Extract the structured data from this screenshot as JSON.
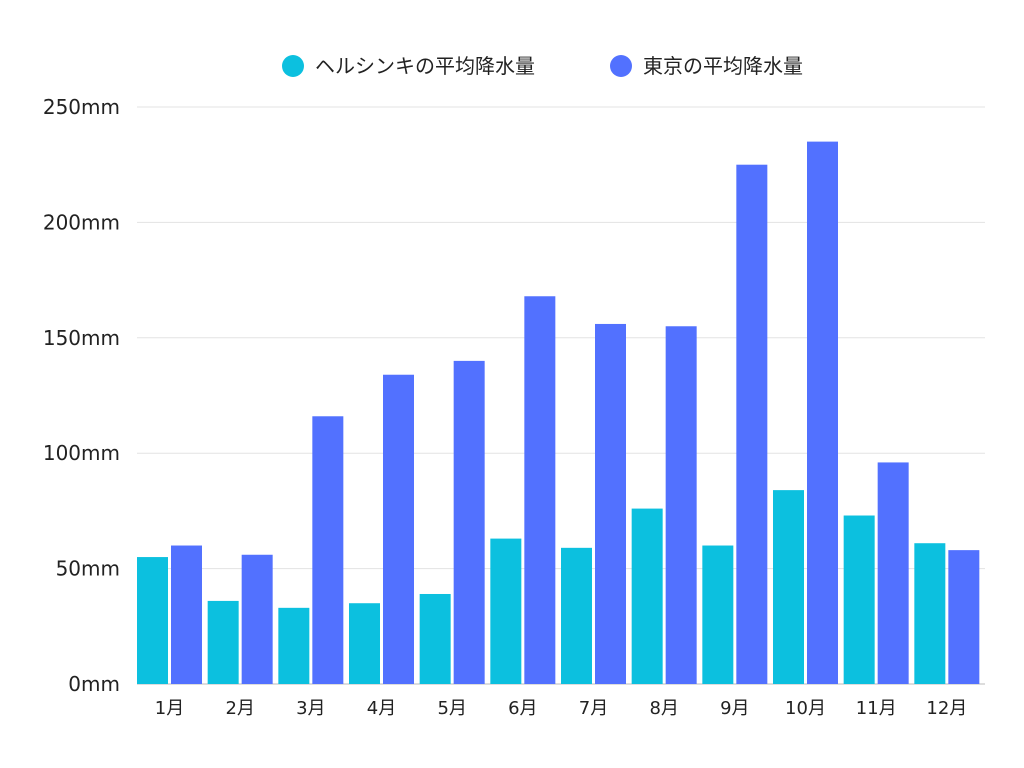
{
  "chart_data": {
    "type": "bar",
    "title": "",
    "xlabel": "",
    "ylabel": "",
    "categories": [
      "1月",
      "2月",
      "3月",
      "4月",
      "5月",
      "6月",
      "7月",
      "8月",
      "9月",
      "10月",
      "11月",
      "12月"
    ],
    "series": [
      {
        "name": "ヘルシンキの平均降水量",
        "color": "#0cc0df",
        "values": [
          55,
          36,
          33,
          35,
          39,
          63,
          59,
          76,
          60,
          84,
          73,
          61
        ]
      },
      {
        "name": "東京の平均降水量",
        "color": "#5271ff",
        "values": [
          60,
          56,
          116,
          134,
          140,
          168,
          156,
          155,
          225,
          235,
          96,
          58
        ]
      }
    ],
    "ylim": [
      0,
      250
    ],
    "yticks": [
      {
        "value": 0,
        "label": "0mm"
      },
      {
        "value": 50,
        "label": "50mm"
      },
      {
        "value": 100,
        "label": "100mm"
      },
      {
        "value": 150,
        "label": "150mm"
      },
      {
        "value": 200,
        "label": "200mm"
      },
      {
        "value": 250,
        "label": "250mm"
      }
    ],
    "grid": true,
    "legend_position": "top"
  }
}
